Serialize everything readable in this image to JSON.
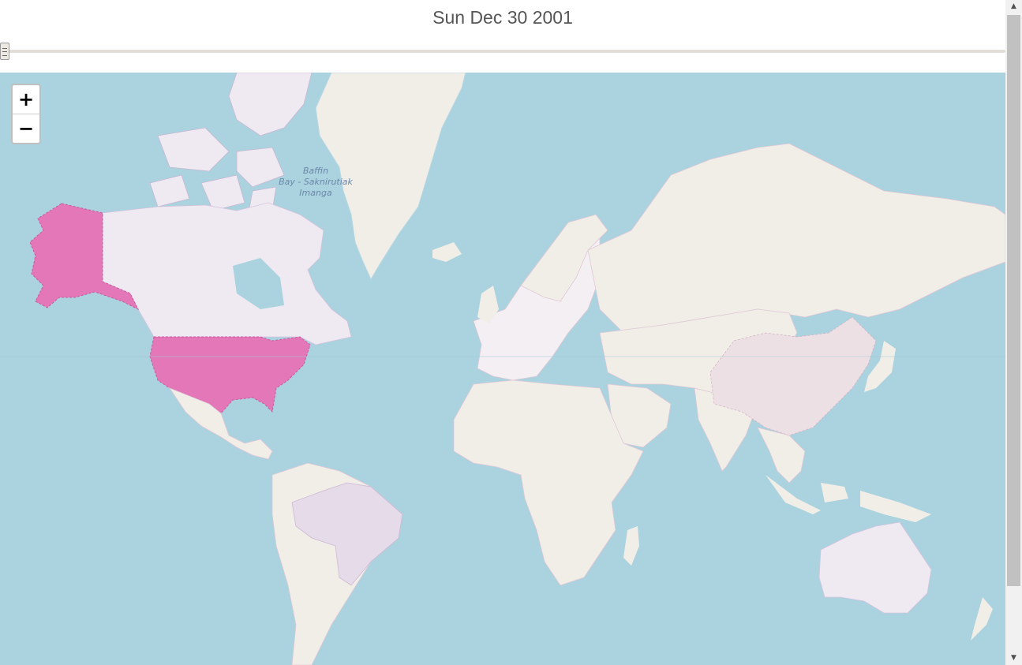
{
  "header": {
    "date_label": "Sun Dec 30 2001"
  },
  "slider": {
    "position_fraction": 0.0
  },
  "map": {
    "zoom_in_label": "+",
    "zoom_out_label": "−",
    "labels": {
      "baffin_line1": "Baffin",
      "baffin_line2": "Bay - Saknirutiak",
      "baffin_line3": "Imanga"
    },
    "colors": {
      "ocean": "#aad3df",
      "land": "#f1eee8",
      "highlight_strong": "#e377b8",
      "highlight_medium": "#e6dbe8",
      "highlight_light": "#efeaf2",
      "highlight_faint": "#ede0e4"
    }
  },
  "scrollbar": {
    "up_icon": "▲",
    "down_icon": "▼"
  }
}
